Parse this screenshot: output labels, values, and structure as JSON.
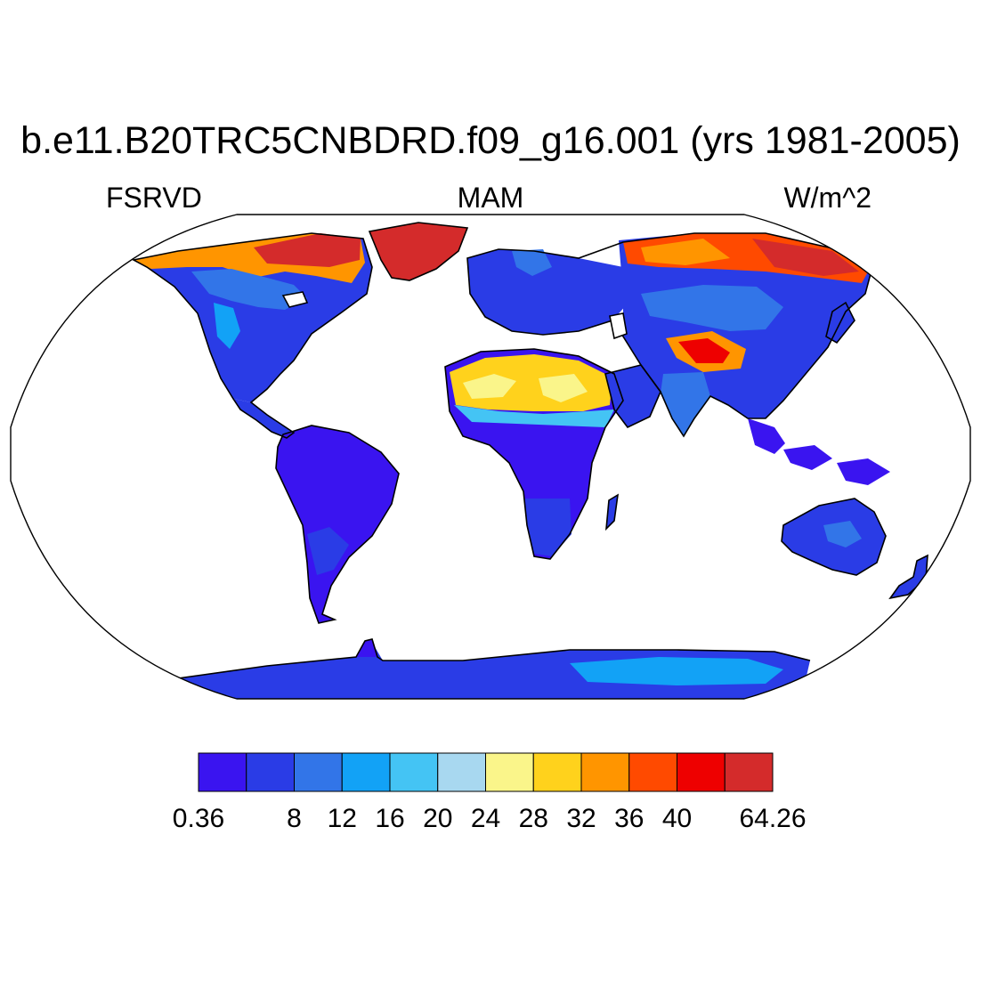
{
  "title": "b.e11.B20TRC5CNBDRD.f09_g16.001 (yrs 1981-2005)",
  "left_label": "FSRVD",
  "center_label": "MAM",
  "right_label": "W/m^2",
  "colorbar": {
    "colors": [
      "#3a14f0",
      "#2a3ce6",
      "#3275e8",
      "#12a2f6",
      "#44c4f4",
      "#a8d8f0",
      "#faf58a",
      "#ffd21c",
      "#ff9500",
      "#ff4a00",
      "#ee0000",
      "#d42b2b"
    ],
    "labels": [
      "0.36",
      "8",
      "12",
      "16",
      "20",
      "24",
      "28",
      "32",
      "36",
      "40",
      "64.26"
    ]
  }
}
